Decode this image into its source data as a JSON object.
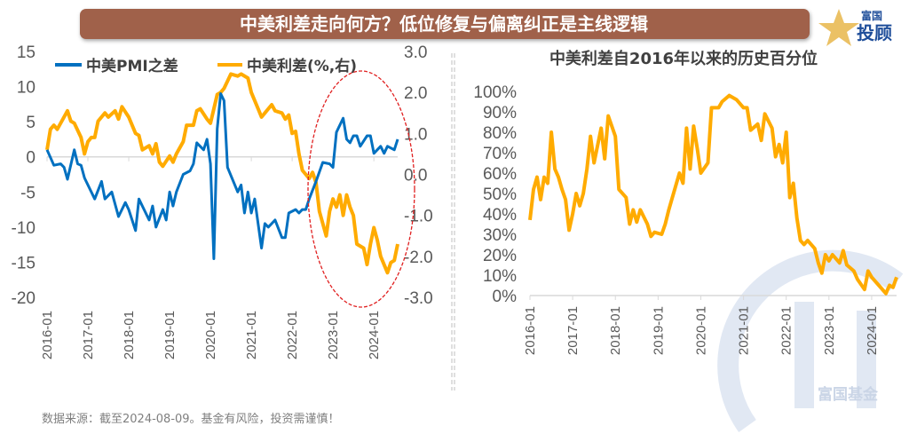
{
  "banner": {
    "title": "中美利差走向何方？低位修复与偏离纠正是主线逻辑",
    "color": "#a0614a"
  },
  "logo": {
    "top": "富国",
    "bottom": "投顾"
  },
  "watermark": {
    "text": "富国基金"
  },
  "source": "数据来源：截至2024-08-09。基金有风险，投资需谨慎！",
  "colors": {
    "pmi": "#0070c0",
    "spread": "#ffab00",
    "highlight": "#e02020"
  },
  "chart_data": [
    {
      "type": "line",
      "title": "",
      "legend": [
        "中美PMI之差",
        "中美利差(%,右)"
      ],
      "legend_position": "top-left",
      "x_ticks": [
        "2016-01",
        "2017-01",
        "2018-01",
        "2019-01",
        "2020-01",
        "2021-01",
        "2022-01",
        "2023-01",
        "2024-01"
      ],
      "y_left": {
        "range": [
          -20,
          15
        ],
        "ticks": [
          "15",
          "10",
          "5",
          "0",
          "-5",
          "-10",
          "-15",
          "-20"
        ]
      },
      "y_right": {
        "range": [
          -3,
          3
        ],
        "ticks": [
          "3.0",
          "2.0",
          "1.0",
          "0.0",
          "-1.0",
          "-2.0",
          "-3.0"
        ]
      },
      "series": [
        {
          "name": "中美PMI之差",
          "axis": "left",
          "points": [
            [
              "2016-01",
              1
            ],
            [
              "2016-03",
              -1.2
            ],
            [
              "2016-05",
              -1
            ],
            [
              "2016-06",
              -1.5
            ],
            [
              "2016-07",
              -3.2
            ],
            [
              "2016-09",
              1
            ],
            [
              "2016-10",
              -1
            ],
            [
              "2016-11",
              -1.2
            ],
            [
              "2016-12",
              -3
            ],
            [
              "2017-03",
              -6
            ],
            [
              "2017-05",
              -3.5
            ],
            [
              "2017-06",
              -6
            ],
            [
              "2017-08",
              -5
            ],
            [
              "2017-10",
              -8.5
            ],
            [
              "2017-12",
              -6.5
            ],
            [
              "2018-01",
              -7.5
            ],
            [
              "2018-03",
              -10.5
            ],
            [
              "2018-04",
              -6
            ],
            [
              "2018-07",
              -9
            ],
            [
              "2018-08",
              -7
            ],
            [
              "2018-09",
              -10
            ],
            [
              "2018-11",
              -7.5
            ],
            [
              "2018-12",
              -9
            ],
            [
              "2019-01",
              -5
            ],
            [
              "2019-02",
              -7
            ],
            [
              "2019-03",
              -5
            ],
            [
              "2019-05",
              -2.5
            ],
            [
              "2019-07",
              -2
            ],
            [
              "2019-08",
              -1
            ],
            [
              "2019-09",
              2
            ],
            [
              "2019-11",
              1
            ],
            [
              "2019-12",
              2.5
            ],
            [
              "2020-01",
              -1
            ],
            [
              "2020-02",
              -14.5
            ],
            [
              "2020-03",
              4
            ],
            [
              "2020-04",
              9
            ],
            [
              "2020-05",
              8
            ],
            [
              "2020-06",
              -1.5
            ],
            [
              "2020-09",
              -5
            ],
            [
              "2020-10",
              -4
            ],
            [
              "2020-11",
              -8
            ],
            [
              "2020-12",
              -5
            ],
            [
              "2021-01",
              -8
            ],
            [
              "2021-02",
              -6
            ],
            [
              "2021-04",
              -13
            ],
            [
              "2021-05",
              -9.5
            ],
            [
              "2021-06",
              -10
            ],
            [
              "2021-08",
              -9
            ],
            [
              "2021-10",
              -11.5
            ],
            [
              "2021-11",
              -11.5
            ],
            [
              "2021-12",
              -8
            ],
            [
              "2022-02",
              -7.5
            ],
            [
              "2022-03",
              -8
            ],
            [
              "2022-04",
              -7.5
            ],
            [
              "2022-05",
              -7.5
            ],
            [
              "2022-06",
              -6
            ],
            [
              "2022-08",
              -3.5
            ],
            [
              "2022-10",
              -0.8
            ],
            [
              "2022-12",
              -1
            ],
            [
              "2023-01",
              -1.5
            ],
            [
              "2023-02",
              3.5
            ],
            [
              "2023-04",
              5.5
            ],
            [
              "2023-05",
              2.5
            ],
            [
              "2023-06",
              2
            ],
            [
              "2023-07",
              3
            ],
            [
              "2023-08",
              3
            ],
            [
              "2023-09",
              1.5
            ],
            [
              "2023-11",
              3
            ],
            [
              "2023-12",
              3
            ],
            [
              "2024-01",
              0.5
            ],
            [
              "2024-03",
              1.5
            ],
            [
              "2024-04",
              0.5
            ],
            [
              "2024-05",
              1.5
            ],
            [
              "2024-07",
              1
            ],
            [
              "2024-08",
              2.5
            ]
          ]
        },
        {
          "name": "中美利差(%,右)",
          "axis": "right",
          "points": [
            [
              "2016-01",
              0.6
            ],
            [
              "2016-02",
              1.1
            ],
            [
              "2016-03",
              1.2
            ],
            [
              "2016-04",
              1.1
            ],
            [
              "2016-07",
              1.55
            ],
            [
              "2016-08",
              1.3
            ],
            [
              "2016-09",
              1.25
            ],
            [
              "2016-11",
              0.9
            ],
            [
              "2016-12",
              0.5
            ],
            [
              "2017-01",
              0.8
            ],
            [
              "2017-02",
              0.9
            ],
            [
              "2017-03",
              0.9
            ],
            [
              "2017-04",
              1.3
            ],
            [
              "2017-06",
              1.5
            ],
            [
              "2017-07",
              1.4
            ],
            [
              "2017-09",
              1.55
            ],
            [
              "2017-10",
              1.35
            ],
            [
              "2017-11",
              1.65
            ],
            [
              "2018-01",
              1.4
            ],
            [
              "2018-03",
              1.0
            ],
            [
              "2018-04",
              0.95
            ],
            [
              "2018-05",
              0.6
            ],
            [
              "2018-07",
              0.7
            ],
            [
              "2018-08",
              0.5
            ],
            [
              "2018-09",
              0.75
            ],
            [
              "2018-10",
              0.3
            ],
            [
              "2018-11",
              0.2
            ],
            [
              "2019-01",
              0.45
            ],
            [
              "2019-02",
              0.3
            ],
            [
              "2019-03",
              0.5
            ],
            [
              "2019-05",
              0.8
            ],
            [
              "2019-06",
              1.2
            ],
            [
              "2019-08",
              1.2
            ],
            [
              "2019-09",
              1.55
            ],
            [
              "2019-10",
              1.6
            ],
            [
              "2019-12",
              1.35
            ],
            [
              "2020-01",
              1.25
            ],
            [
              "2020-03",
              1.95
            ],
            [
              "2020-04",
              2.0
            ],
            [
              "2020-05",
              2.1
            ],
            [
              "2020-07",
              2.45
            ],
            [
              "2020-09",
              2.4
            ],
            [
              "2020-10",
              2.45
            ],
            [
              "2020-12",
              2.35
            ],
            [
              "2021-01",
              2.0
            ],
            [
              "2021-03",
              1.6
            ],
            [
              "2021-04",
              1.4
            ],
            [
              "2021-05",
              1.5
            ],
            [
              "2021-07",
              1.7
            ],
            [
              "2021-08",
              1.55
            ],
            [
              "2021-10",
              1.5
            ],
            [
              "2021-11",
              1.35
            ],
            [
              "2021-12",
              1.45
            ],
            [
              "2022-01",
              1.0
            ],
            [
              "2022-02",
              1.05
            ],
            [
              "2022-03",
              0.5
            ],
            [
              "2022-04",
              0.1
            ],
            [
              "2022-06",
              -0.1
            ],
            [
              "2022-07",
              0.05
            ],
            [
              "2022-08",
              -0.2
            ],
            [
              "2022-09",
              -0.9
            ],
            [
              "2022-11",
              -1.5
            ],
            [
              "2022-12",
              -0.9
            ],
            [
              "2023-01",
              -0.6
            ],
            [
              "2023-02",
              -0.8
            ],
            [
              "2023-03",
              -0.5
            ],
            [
              "2023-04",
              -1.0
            ],
            [
              "2023-05",
              -0.5
            ],
            [
              "2023-06",
              -0.8
            ],
            [
              "2023-07",
              -1.0
            ],
            [
              "2023-08",
              -1.7
            ],
            [
              "2023-10",
              -1.8
            ],
            [
              "2023-11",
              -2.2
            ],
            [
              "2023-12",
              -1.7
            ],
            [
              "2024-01",
              -1.3
            ],
            [
              "2024-02",
              -1.6
            ],
            [
              "2024-03",
              -2.0
            ],
            [
              "2024-05",
              -2.4
            ],
            [
              "2024-06",
              -2.15
            ],
            [
              "2024-07",
              -2.1
            ],
            [
              "2024-08",
              -1.7
            ]
          ]
        }
      ]
    },
    {
      "type": "line",
      "title": "中美利差自2016年以来的历史百分位",
      "x_ticks": [
        "2016-01",
        "2017-01",
        "2018-01",
        "2019-01",
        "2020-01",
        "2021-01",
        "2022-01",
        "2023-01",
        "2024-01"
      ],
      "y": {
        "range": [
          0,
          100
        ],
        "unit": "%",
        "ticks": [
          "100%",
          "90%",
          "80%",
          "70%",
          "60%",
          "50%",
          "40%",
          "30%",
          "20%",
          "10%",
          "0%"
        ]
      },
      "series": [
        {
          "points": [
            [
              "2016-01",
              37
            ],
            [
              "2016-02",
              52
            ],
            [
              "2016-03",
              58
            ],
            [
              "2016-04",
              47
            ],
            [
              "2016-05",
              58
            ],
            [
              "2016-06",
              55
            ],
            [
              "2016-07",
              80
            ],
            [
              "2016-08",
              62
            ],
            [
              "2016-09",
              58
            ],
            [
              "2016-10",
              52
            ],
            [
              "2016-11",
              47
            ],
            [
              "2016-12",
              32
            ],
            [
              "2017-01",
              40
            ],
            [
              "2017-02",
              50
            ],
            [
              "2017-03",
              44
            ],
            [
              "2017-04",
              50
            ],
            [
              "2017-05",
              62
            ],
            [
              "2017-06",
              78
            ],
            [
              "2017-07",
              65
            ],
            [
              "2017-09",
              82
            ],
            [
              "2017-10",
              67
            ],
            [
              "2017-11",
              88
            ],
            [
              "2018-01",
              78
            ],
            [
              "2018-02",
              52
            ],
            [
              "2018-04",
              48
            ],
            [
              "2018-05",
              35
            ],
            [
              "2018-06",
              42
            ],
            [
              "2018-07",
              36
            ],
            [
              "2018-08",
              42
            ],
            [
              "2018-10",
              35
            ],
            [
              "2018-11",
              29
            ],
            [
              "2018-12",
              31
            ],
            [
              "2019-02",
              30
            ],
            [
              "2019-03",
              35
            ],
            [
              "2019-04",
              42
            ],
            [
              "2019-05",
              48
            ],
            [
              "2019-07",
              60
            ],
            [
              "2019-08",
              55
            ],
            [
              "2019-09",
              82
            ],
            [
              "2019-10",
              62
            ],
            [
              "2019-11",
              83
            ],
            [
              "2019-12",
              72
            ],
            [
              "2020-01",
              60
            ],
            [
              "2020-03",
              65
            ],
            [
              "2020-04",
              92
            ],
            [
              "2020-06",
              92
            ],
            [
              "2020-07",
              95
            ],
            [
              "2020-09",
              98
            ],
            [
              "2020-11",
              96
            ],
            [
              "2021-01",
              92
            ],
            [
              "2021-02",
              92
            ],
            [
              "2021-03",
              81
            ],
            [
              "2021-05",
              84
            ],
            [
              "2021-06",
              76
            ],
            [
              "2021-07",
              89
            ],
            [
              "2021-09",
              82
            ],
            [
              "2021-10",
              68
            ],
            [
              "2021-11",
              74
            ],
            [
              "2021-12",
              65
            ],
            [
              "2022-01",
              80
            ],
            [
              "2022-02",
              48
            ],
            [
              "2022-03",
              55
            ],
            [
              "2022-04",
              38
            ],
            [
              "2022-05",
              27
            ],
            [
              "2022-06",
              25
            ],
            [
              "2022-07",
              27
            ],
            [
              "2022-09",
              23
            ],
            [
              "2022-10",
              16
            ],
            [
              "2022-11",
              11
            ],
            [
              "2022-12",
              20
            ],
            [
              "2023-01",
              17
            ],
            [
              "2023-02",
              20
            ],
            [
              "2023-04",
              16
            ],
            [
              "2023-05",
              22
            ],
            [
              "2023-06",
              15
            ],
            [
              "2023-08",
              12
            ],
            [
              "2023-09",
              8
            ],
            [
              "2023-11",
              3
            ],
            [
              "2023-12",
              12
            ],
            [
              "2024-01",
              9
            ],
            [
              "2024-03",
              5
            ],
            [
              "2024-05",
              1
            ],
            [
              "2024-06",
              5
            ],
            [
              "2024-07",
              4
            ],
            [
              "2024-08",
              9
            ]
          ]
        }
      ]
    }
  ]
}
